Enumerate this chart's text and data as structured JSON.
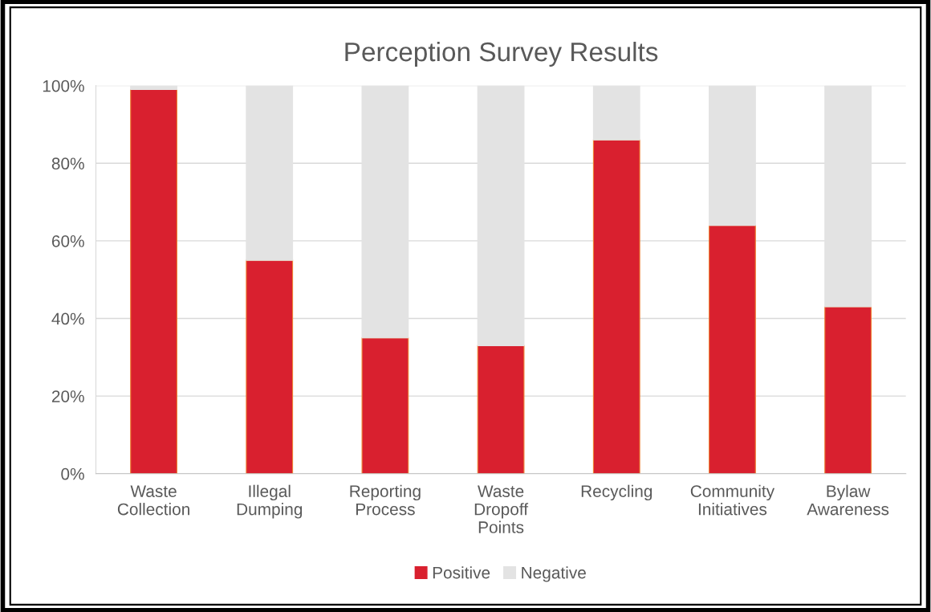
{
  "chart_data": {
    "type": "bar",
    "title": "Perception Survey Results",
    "stacked": true,
    "categories": [
      "Waste\nCollection",
      "Illegal\nDumping",
      "Reporting\nProcess",
      "Waste\nDropoff\nPoints",
      "Recycling",
      "Community\nInitiatives",
      "Bylaw\nAwareness"
    ],
    "series": [
      {
        "name": "Positive",
        "color": "#d9202f",
        "values": [
          99,
          55,
          35,
          33,
          86,
          64,
          43
        ]
      },
      {
        "name": "Negative",
        "color": "#e3e3e3",
        "values": [
          1,
          45,
          65,
          67,
          14,
          36,
          57
        ]
      }
    ],
    "ylim": [
      0,
      100
    ],
    "yticks": [
      {
        "value": 0,
        "label": "0%"
      },
      {
        "value": 20,
        "label": "20%"
      },
      {
        "value": 40,
        "label": "40%"
      },
      {
        "value": 60,
        "label": "60%"
      },
      {
        "value": 80,
        "label": "80%"
      },
      {
        "value": 100,
        "label": "100%"
      }
    ],
    "grid": "y",
    "legend": "bottom"
  }
}
